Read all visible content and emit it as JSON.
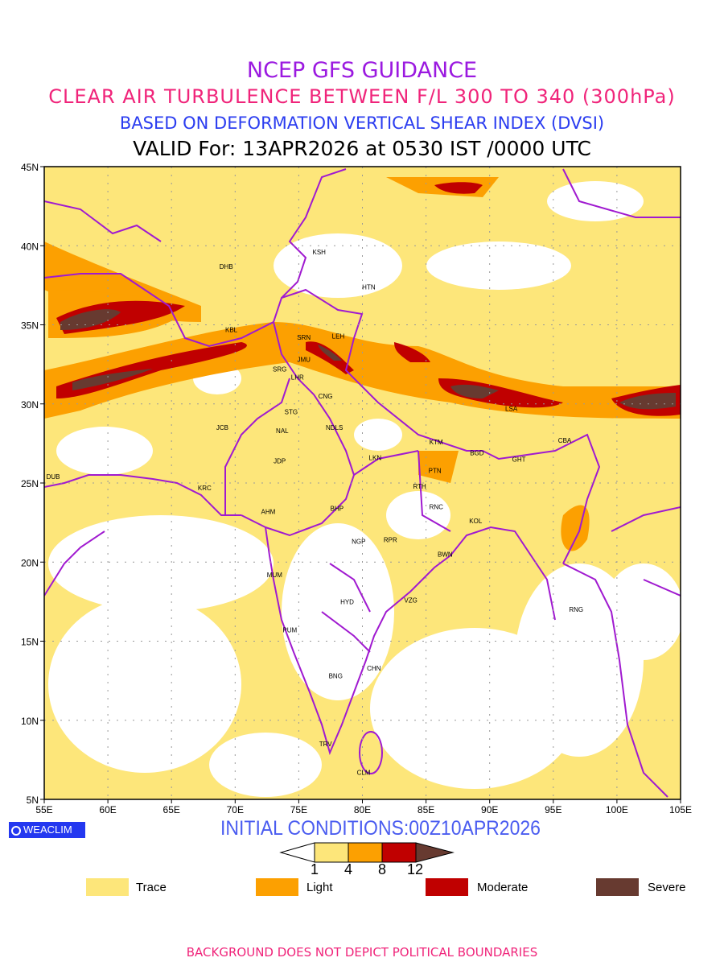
{
  "title": {
    "line1": "NCEP GFS GUIDANCE",
    "line2": "CLEAR AIR TURBULENCE BETWEEN F/L 300 TO 340 (300hPa)",
    "line3": "BASED ON DEFORMATION VERTICAL SHEAR INDEX (DVSI)",
    "line4": "VALID For: 13APR2026 at 0530 IST /0000 UTC"
  },
  "axes": {
    "x_ticks": [
      "55E",
      "60E",
      "65E",
      "70E",
      "75E",
      "80E",
      "85E",
      "90E",
      "95E",
      "100E",
      "105E"
    ],
    "y_ticks": [
      "45N",
      "40N",
      "35N",
      "30N",
      "25N",
      "20N",
      "15N",
      "10N",
      "5N"
    ]
  },
  "cities": [
    "KSH",
    "DHB",
    "HTN",
    "KBL",
    "SRN",
    "LEH",
    "JMU",
    "SRG",
    "LHR",
    "CNG",
    "STG",
    "NAL",
    "JCB",
    "NDLS",
    "JDP",
    "LKN",
    "KTM",
    "PTN",
    "BGD",
    "GHT",
    "CBA",
    "LSA",
    "DUB",
    "KRC",
    "AHM",
    "BHP",
    "RTH",
    "RNC",
    "KOL",
    "NGP",
    "RPR",
    "BWN",
    "MUM",
    "HYD",
    "VZG",
    "RNG",
    "PUM",
    "CHN",
    "BNG",
    "TRV",
    "CLM"
  ],
  "logo": "WEACLIM",
  "initial_conditions": "INITIAL CONDITIONS:00Z10APR2026",
  "colorbar": {
    "labels": [
      "1",
      "4",
      "8",
      "12"
    ],
    "colors": {
      "trace": "#fde67a",
      "light": "#fca001",
      "moderate": "#c00000",
      "severe": "#673a30"
    }
  },
  "legend": [
    {
      "label": "Trace"
    },
    {
      "label": "Light"
    },
    {
      "label": "Moderate"
    },
    {
      "label": "Severe"
    }
  ],
  "footer": "BACKGROUND DOES NOT DEPICT POLITICAL BOUNDARIES"
}
